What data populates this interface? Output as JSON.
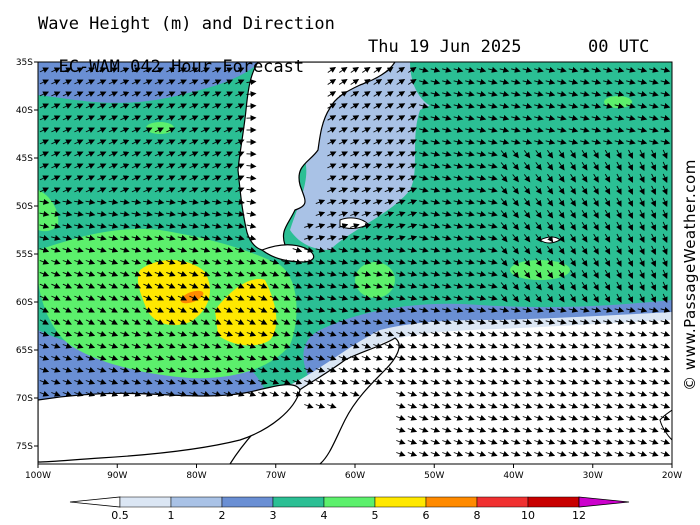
{
  "header": {
    "title": "Wave Height (m) and Direction",
    "model": "EC-WAM 042 Hour Forecast",
    "date": "Thu 19 Jun 2025",
    "time": "00 UTC"
  },
  "credit": "© www.PassageWeather.com",
  "map": {
    "lat_labels": [
      "35S",
      "40S",
      "45S",
      "50S",
      "55S",
      "60S",
      "65S",
      "70S",
      "75S"
    ],
    "lon_labels": [
      "100W",
      "90W",
      "80W",
      "70W",
      "60W",
      "50W",
      "40W",
      "30W",
      "20W"
    ],
    "lat_range": [
      -35,
      -77
    ],
    "lon_range": [
      -100,
      -20
    ],
    "colors": {
      "land": "#ffffff",
      "coast": "#000000",
      "c0": "#ffffff",
      "c05": "#dbe6f4",
      "c1": "#a9c2e6",
      "c2": "#6a8fd4",
      "c3": "#2bbf94",
      "c4": "#5cf06c",
      "c5": "#ffe800",
      "c6": "#ff8a00",
      "arrow": "#000000"
    }
  },
  "legend": {
    "labels": [
      "0.5",
      "1",
      "2",
      "3",
      "4",
      "5",
      "6",
      "8",
      "10",
      "12"
    ],
    "colors": [
      "#ffffff",
      "#dbe6f4",
      "#a9c2e6",
      "#6a8fd4",
      "#2bbf94",
      "#5cf06c",
      "#ffe800",
      "#ff8a00",
      "#f03030",
      "#c80000",
      "#cc00cc"
    ]
  }
}
